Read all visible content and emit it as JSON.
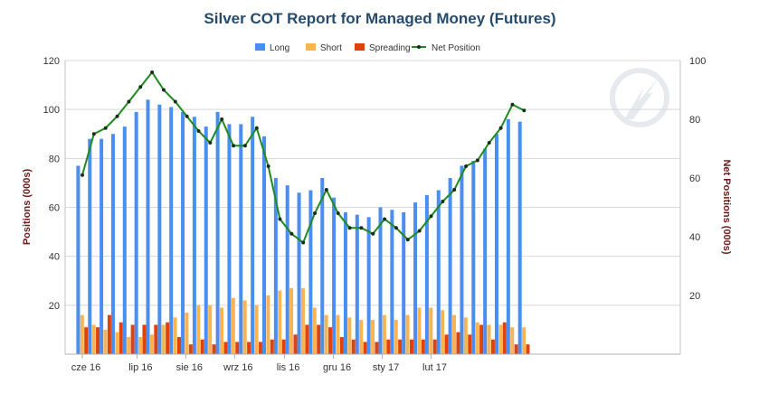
{
  "chart_data": {
    "type": "bar",
    "title": "Silver COT Report for Managed Money (Futures)",
    "ylabel": "Positions (000s)",
    "y2label": "Net Positions (000s)",
    "ylim": [
      0,
      120
    ],
    "y2lim": [
      0,
      100
    ],
    "yticks": [
      20,
      40,
      60,
      80,
      100,
      120
    ],
    "y2ticks": [
      20,
      40,
      60,
      80,
      100
    ],
    "xlabels": [
      "cze 16",
      "lip 16",
      "sie 16",
      "wrz 16",
      "lis 16",
      "gru 16",
      "sty 17",
      "lut 17"
    ],
    "xlabel_positions": [
      0,
      4.7,
      8.9,
      13.1,
      17.4,
      21.6,
      25.8,
      30.0
    ],
    "grid": true,
    "legend_position": "top-center",
    "colors": {
      "long": "#4a8ef0",
      "short": "#f8b450",
      "spreading": "#e0420f",
      "net": "#1f8a1f",
      "net_marker": "#15301a"
    },
    "series": [
      {
        "name": "Long",
        "type": "bar",
        "values": [
          77,
          88,
          88,
          90,
          93,
          99,
          104,
          102,
          101,
          99,
          97,
          93,
          99,
          94,
          94,
          97,
          89,
          72,
          69,
          66,
          67,
          72,
          64,
          58,
          57,
          56,
          60,
          59,
          58,
          62,
          65,
          67,
          72,
          77,
          79,
          84,
          90,
          96,
          95
        ]
      },
      {
        "name": "Short",
        "type": "bar",
        "values": [
          16,
          12,
          10,
          9,
          7,
          7,
          8,
          12,
          15,
          17,
          20,
          20,
          19,
          23,
          22,
          20,
          24,
          26,
          27,
          27,
          19,
          16,
          16,
          15,
          14,
          14,
          16,
          14,
          16,
          19,
          19,
          18,
          16,
          15,
          13,
          12,
          12,
          11,
          11
        ]
      },
      {
        "name": "Spreading",
        "type": "bar",
        "values": [
          11,
          11,
          16,
          13,
          12,
          12,
          12,
          13,
          7,
          4,
          6,
          4,
          5,
          5,
          5,
          5,
          6,
          6,
          8,
          12,
          12,
          11,
          7,
          6,
          5,
          5,
          6,
          6,
          6,
          6,
          6,
          8,
          9,
          8,
          12,
          6,
          13,
          4,
          4
        ]
      },
      {
        "name": "Net Position",
        "type": "line",
        "axis": "right",
        "values": [
          61,
          75,
          77,
          81,
          86,
          91,
          96,
          90,
          86,
          81,
          76,
          72,
          80,
          71,
          71,
          77,
          64,
          46,
          41,
          38,
          48,
          56,
          48,
          43,
          43,
          41,
          46,
          43,
          39,
          42,
          47,
          52,
          56,
          64,
          66,
          72,
          77,
          85,
          83
        ]
      }
    ]
  }
}
